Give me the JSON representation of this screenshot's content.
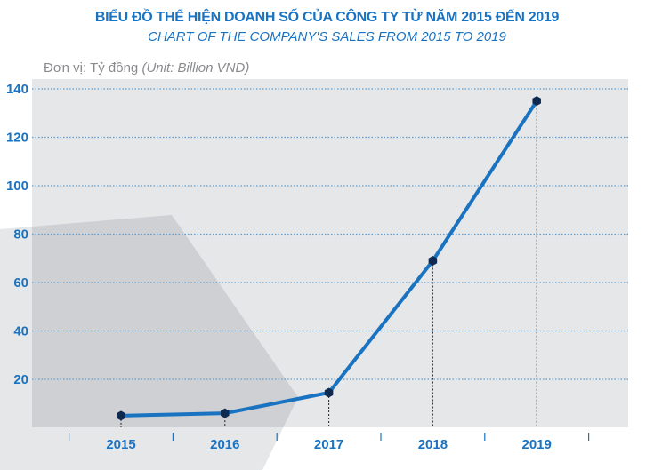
{
  "chart_data": {
    "type": "line",
    "title": "BIỂU ĐỒ THỂ HIỆN DOANH SỐ CỦA CÔNG TY TỪ NĂM 2015 ĐẾN 2019",
    "subtitle": "CHART OF THE COMPANY'S SALES FROM 2015 TO 2019",
    "unit_label": "Đơn vị: Tỷ đồng",
    "unit_label_en": "(Unit: Billion VND)",
    "categories": [
      "2015",
      "2016",
      "2017",
      "2018",
      "2019"
    ],
    "values": [
      5,
      6,
      14.5,
      69,
      135
    ],
    "y_ticks": [
      20,
      40,
      60,
      80,
      100,
      120,
      140
    ],
    "ylim": [
      0,
      150
    ],
    "grid": "horizontal dotted",
    "colors": {
      "line": "#1a73c1",
      "marker": "#0e2a50",
      "text": "#1a73c1",
      "plot_bg": "#e6e7e9"
    }
  }
}
